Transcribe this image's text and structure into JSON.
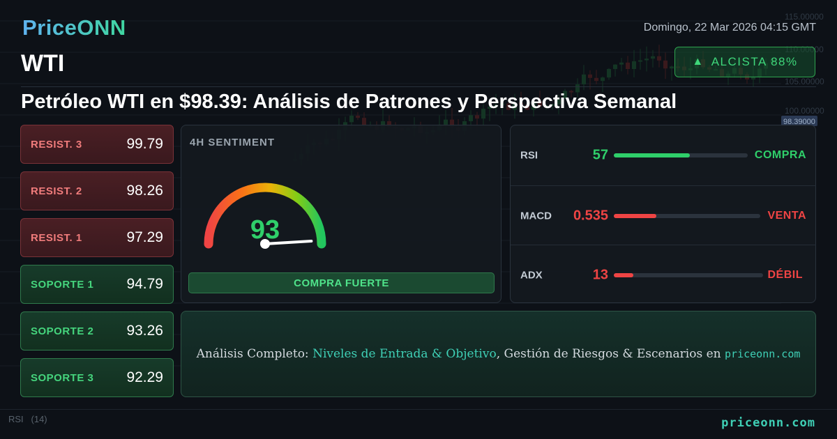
{
  "brand": "PriceONN",
  "datetime": "Domingo, 22 Mar 2026 04:15 GMT",
  "ticker": "WTI",
  "trend": {
    "label": "ALCISTA 88%",
    "direction": "up",
    "color": "#3fd67a"
  },
  "headline": "Petróleo WTI en $98.39: Análisis de Patrones y Perspectiva Semanal",
  "levels": [
    {
      "label": "RESIST. 3",
      "value": "99.79",
      "type": "resistance"
    },
    {
      "label": "RESIST. 2",
      "value": "98.26",
      "type": "resistance"
    },
    {
      "label": "RESIST. 1",
      "value": "97.29",
      "type": "resistance"
    },
    {
      "label": "SOPORTE 1",
      "value": "94.79",
      "type": "support"
    },
    {
      "label": "SOPORTE 2",
      "value": "93.26",
      "type": "support"
    },
    {
      "label": "SOPORTE 3",
      "value": "92.29",
      "type": "support"
    }
  ],
  "sentiment": {
    "title": "4H SENTIMENT",
    "score": "93",
    "label": "COMPRA FUERTE"
  },
  "indicators": [
    {
      "name": "RSI",
      "value": "57",
      "fill_fraction": 0.57,
      "signal": "COMPRA",
      "color": "#2fcf6a"
    },
    {
      "name": "MACD",
      "value": "0.535",
      "fill_fraction": 0.29,
      "signal": "VENTA",
      "color": "#ef4444"
    },
    {
      "name": "ADX",
      "value": "13",
      "fill_fraction": 0.13,
      "signal": "DÉBIL",
      "color": "#ef4444"
    }
  ],
  "cta": {
    "prefix": "Análisis Completo: ",
    "highlight": "Niveles de Entrada & Objetivo",
    "middle": ", Gestión de Riesgos & Escenarios en ",
    "site": "priceonn.com"
  },
  "footer_url": "priceonn.com",
  "chart_bg": {
    "price_axis_ticks": [
      "115.00000",
      "110.00000",
      "105.00000",
      "100.00000"
    ],
    "price_label": "98.39000",
    "rsi_pane_label": "RSI",
    "rsi_pane_value": "(14)"
  }
}
